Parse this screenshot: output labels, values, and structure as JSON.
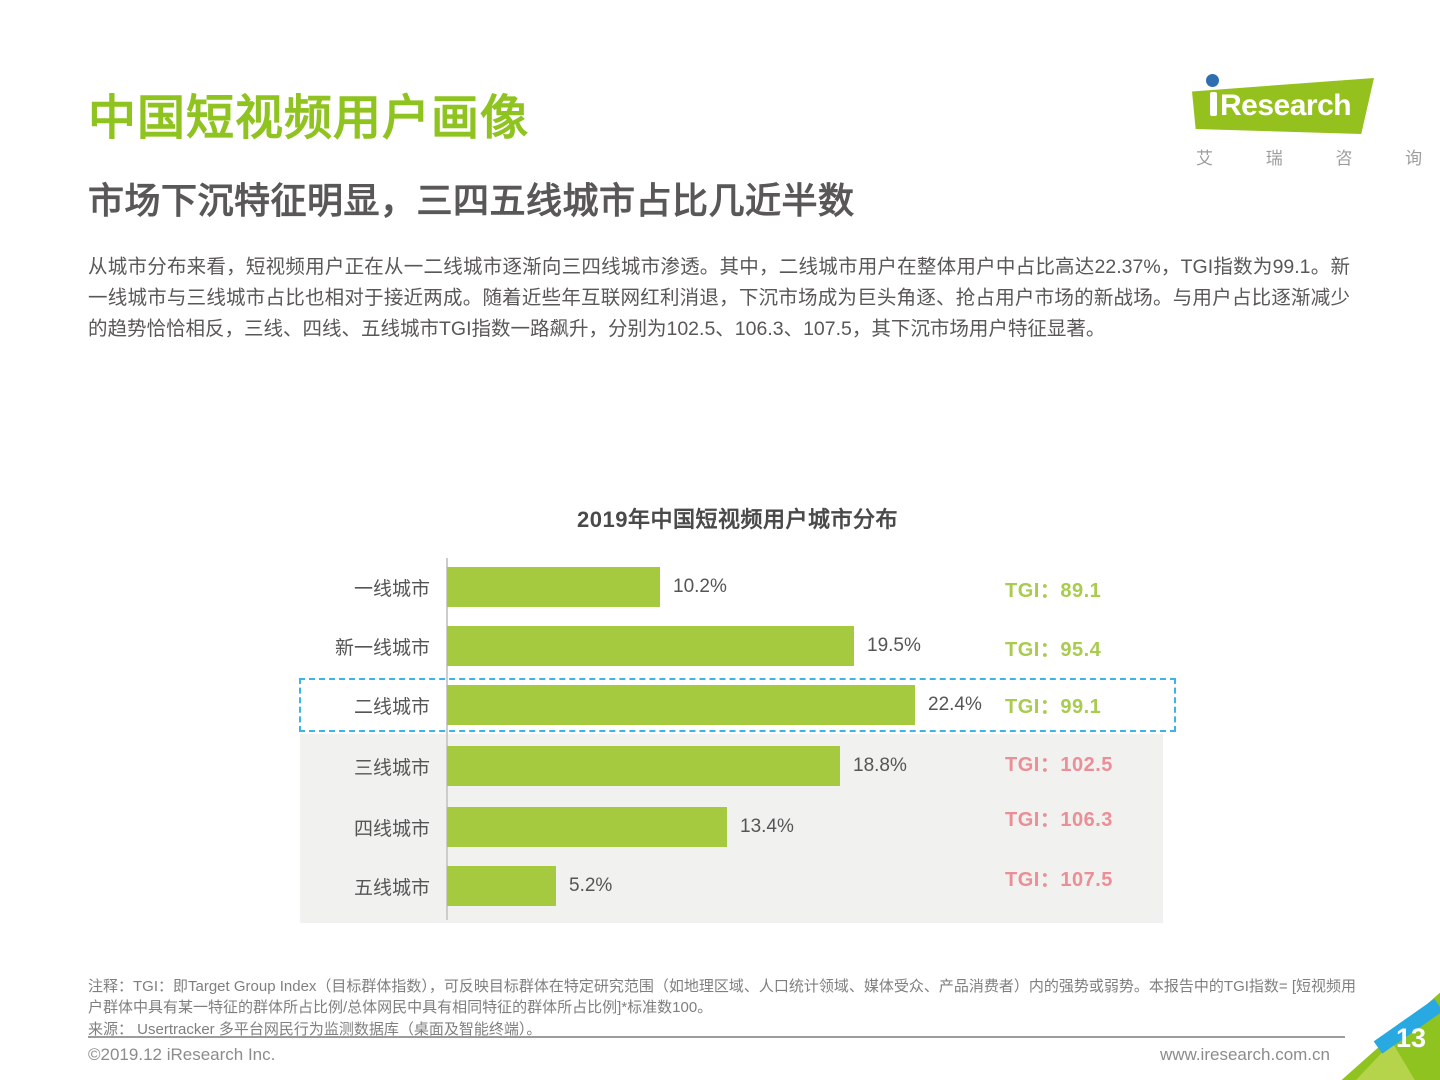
{
  "page": {
    "title": "中国短视频用户画像",
    "subtitle": "市场下沉特征明显，三四五线城市占比几近半数",
    "body": "从城市分布来看，短视频用户正在从一二线城市逐渐向三四线城市渗透。其中，二线城市用户在整体用户中占比高达22.37%，TGI指数为99.1。新一线城市与三线城市占比也相对于接近两成。随着近些年互联网红利消退，下沉市场成为巨头角逐、抢占用户市场的新战场。与用户占比逐渐减少的趋势恰恰相反，三线、四线、五线城市TGI指数一路飙升，分别为102.5、106.3、107.5，其下沉市场用户特征显著。"
  },
  "logo": {
    "brand": "Research",
    "brand_cn": "艾 瑞 咨 询"
  },
  "chart_data": {
    "type": "bar",
    "orientation": "horizontal",
    "title": "2019年中国短视频用户城市分布",
    "categories": [
      "一线城市",
      "新一线城市",
      "二线城市",
      "三线城市",
      "四线城市",
      "五线城市"
    ],
    "values": [
      10.2,
      19.5,
      22.4,
      18.8,
      13.4,
      5.2
    ],
    "value_labels": [
      "10.2%",
      "19.5%",
      "22.4%",
      "18.8%",
      "13.4%",
      "5.2%"
    ],
    "tgi_values": [
      89.1,
      95.4,
      99.1,
      102.5,
      106.3,
      107.5
    ],
    "tgi_labels": [
      "TGI：89.1",
      "TGI：95.4",
      "TGI：99.1",
      "TGI：102.5",
      "TGI：106.3",
      "TGI：107.5"
    ],
    "highlighted_category": "二线城市",
    "xlim": [
      0,
      25
    ],
    "grid": false,
    "legend": false
  },
  "colors": {
    "title_green": "#8fc320",
    "bar_green": "#a5c93f",
    "tgi_green": "#a9cb4e",
    "tgi_pink": "#ec8e96",
    "highlight_border_blue": "#3eb3e4",
    "gray_band": "#f1f1f0",
    "logo_green": "#95c11f",
    "logo_dot_blue": "#2e6fb2",
    "corner_blue": "#29a9e1",
    "corner_green": "#8fc31f",
    "corner_light_green": "#b5d44c"
  },
  "footer": {
    "note": "注释：TGI：即Target Group Index（目标群体指数），可反映目标群体在特定研究范围（如地理区域、人口统计领域、媒体受众、产品消费者）内的强势或弱势。本报告中的TGI指数= [短视频用户群体中具有某一特征的群体所占比例/总体网民中具有相同特征的群体所占比例]*标准数100。",
    "source": "来源： Usertracker 多平台网民行为监测数据库（桌面及智能终端）。",
    "copyright": "©2019.12 iResearch Inc.",
    "website": "www.iresearch.com.cn",
    "page_number": "13"
  }
}
